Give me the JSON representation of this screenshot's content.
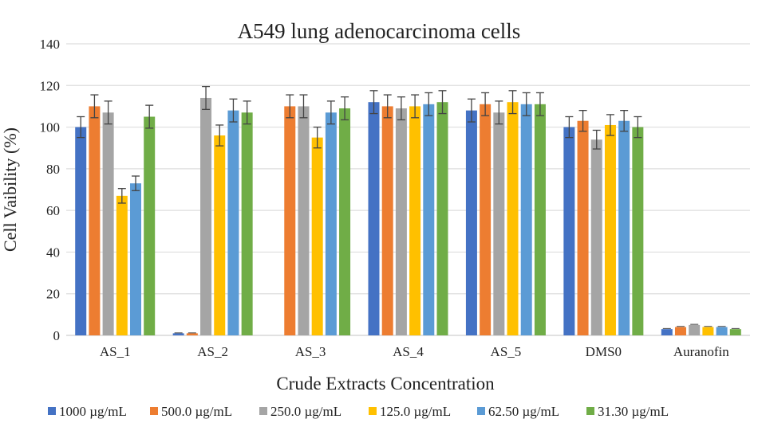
{
  "chart_data": {
    "type": "bar",
    "title": "A549 lung adenocarcinoma cells",
    "xlabel": "Crude Extracts Concentration",
    "ylabel": "Cell Vaibility (%)",
    "ylim": [
      0,
      140
    ],
    "yticks": [
      0,
      20,
      40,
      60,
      80,
      100,
      120,
      140
    ],
    "grid": true,
    "legend_position": "bottom",
    "categories": [
      "AS_1",
      "AS_2",
      "AS_3",
      "AS_4",
      "AS_5",
      "DMS0",
      "Auranofin"
    ],
    "series": [
      {
        "name": "1000 µg/mL",
        "color": "#4472C4",
        "values": [
          100,
          1,
          0,
          112,
          108,
          100,
          3
        ],
        "errors": [
          5,
          0.2,
          0,
          5.5,
          5.5,
          5,
          0.3
        ]
      },
      {
        "name": "500.0 µg/mL",
        "color": "#ED7D31",
        "values": [
          110,
          1,
          110,
          110,
          111,
          103,
          4
        ],
        "errors": [
          5.5,
          0.2,
          5.5,
          5.5,
          5.5,
          5,
          0.3
        ]
      },
      {
        "name": "250.0 µg/mL",
        "color": "#A5A5A5",
        "values": [
          107,
          114,
          110,
          109,
          107,
          94,
          5
        ],
        "errors": [
          5.5,
          5.5,
          5.5,
          5.5,
          5.5,
          4.5,
          0.3
        ]
      },
      {
        "name": "125.0 µg/mL",
        "color": "#FFC000",
        "values": [
          67,
          96,
          95,
          110,
          112,
          101,
          4
        ],
        "errors": [
          3.5,
          5,
          5,
          5.5,
          5.5,
          5,
          0.3
        ]
      },
      {
        "name": "62.50 µg/mL",
        "color": "#5B9BD5",
        "values": [
          73,
          108,
          107,
          111,
          111,
          103,
          4
        ],
        "errors": [
          3.5,
          5.5,
          5.5,
          5.5,
          5.5,
          5,
          0.3
        ]
      },
      {
        "name": "31.30 µg/mL",
        "color": "#70AD47",
        "values": [
          105,
          107,
          109,
          112,
          111,
          100,
          3
        ],
        "errors": [
          5.5,
          5.5,
          5.5,
          5.5,
          5.5,
          5,
          0.3
        ]
      }
    ]
  }
}
